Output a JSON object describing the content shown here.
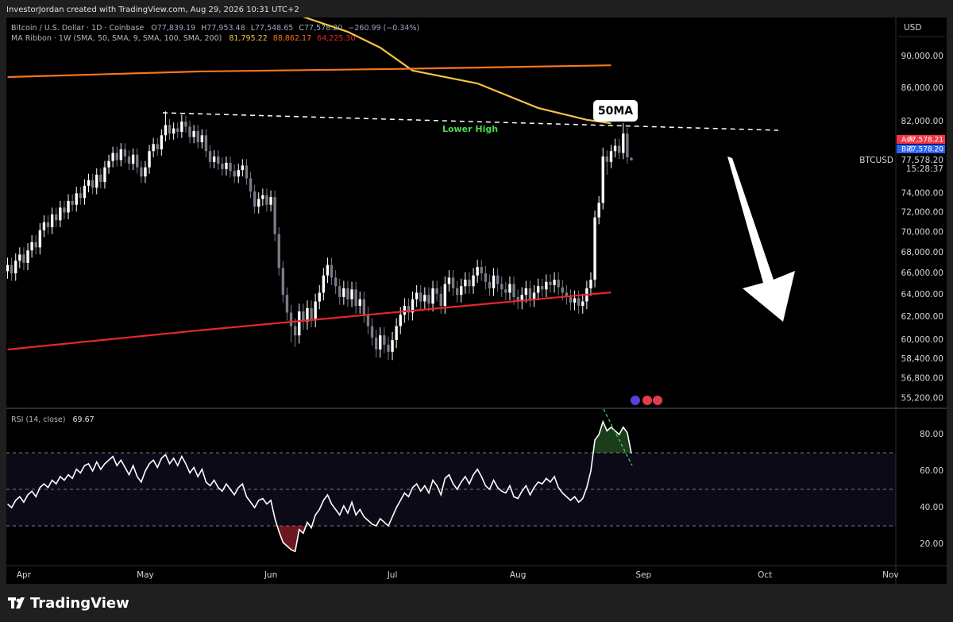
{
  "header": "InvestorJordan created with TradingView.com, Aug 29, 2026 10:31 UTC+2",
  "footer": {
    "brand": "TradingView"
  },
  "chart_data": [
    {
      "type": "candlestick",
      "title": "Bitcoin / U.S. Dollar · 1D · Coinbase",
      "ohlc_legend": [
        {
          "key": "O",
          "value": "77,839.19"
        },
        {
          "key": "H",
          "value": "77,953.48"
        },
        {
          "key": "L",
          "value": "77,548.65"
        },
        {
          "key": "C",
          "value": "77,578.20"
        }
      ],
      "change": "−260.99 (−0.34%)",
      "currency": "USD",
      "scale": "log",
      "up_color": "#ffffff",
      "down_color": "#787b86",
      "xlim": [
        -0.3,
        219.3
      ],
      "xticks": [
        {
          "value": 4,
          "label": "Apr"
        },
        {
          "value": 34,
          "label": "May"
        },
        {
          "value": 65,
          "label": "Jun"
        },
        {
          "value": 95,
          "label": "Jul"
        },
        {
          "value": 126,
          "label": "Aug"
        },
        {
          "value": 157,
          "label": "Sep"
        },
        {
          "value": 187,
          "label": "Oct"
        },
        {
          "value": 218,
          "label": "Nov"
        }
      ],
      "ylim": [
        54480,
        95150
      ],
      "yticks": [
        {
          "value": 55200,
          "label": "55,200.00"
        },
        {
          "value": 56800,
          "label": "56,800.00"
        },
        {
          "value": 58400,
          "label": "58,400.00"
        },
        {
          "value": 60000,
          "label": "60,000.00"
        },
        {
          "value": 62000,
          "label": "62,000.00"
        },
        {
          "value": 64000,
          "label": "64,000.00"
        },
        {
          "value": 66000,
          "label": "66,000.00"
        },
        {
          "value": 68000,
          "label": "68,000.00"
        },
        {
          "value": 70000,
          "label": "70,000.00"
        },
        {
          "value": 72000,
          "label": "72,000.00"
        },
        {
          "value": 74000,
          "label": "74,000.00"
        },
        {
          "value": 82000,
          "label": "82,000.00"
        },
        {
          "value": 86000,
          "label": "86,000.00"
        },
        {
          "value": 90000,
          "label": "90,000.00"
        }
      ],
      "open": [
        66200,
        66800,
        66000,
        67200,
        67800,
        67000,
        68200,
        69000,
        68500,
        70200,
        71000,
        70500,
        71800,
        71200,
        72500,
        72000,
        73200,
        72800,
        74000,
        73500,
        74800,
        75400,
        74600,
        76000,
        75200,
        76800,
        77500,
        78400,
        77600,
        78800,
        78000,
        77200,
        78200,
        76800,
        75800,
        76800,
        78600,
        79400,
        78800,
        80400,
        81600,
        80600,
        81200,
        80800,
        82000,
        81400,
        80200,
        80900,
        79600,
        80400,
        78600,
        77400,
        78000,
        77200,
        76600,
        77300,
        76400,
        75800,
        76500,
        77000,
        75600,
        74200,
        72600,
        73400,
        73800,
        72800,
        73600,
        69800,
        66500,
        64000,
        62400,
        61200,
        60400,
        62500,
        61600,
        62800,
        61800,
        63400,
        64200,
        65800,
        66800,
        65600,
        64800,
        63800,
        64600,
        63600,
        64500,
        63000,
        63600,
        62200,
        61200,
        60200,
        59200,
        60400,
        59600,
        59000,
        60000,
        61200,
        62200,
        63000,
        62400,
        63600,
        64200,
        63400,
        64000,
        63200,
        64600,
        64100,
        63000,
        65000,
        65600,
        64600,
        64000,
        64800,
        65400,
        64800,
        65800,
        66600,
        66000,
        65200,
        64600,
        65800,
        65000,
        64500,
        64200,
        65000,
        63800,
        63400,
        64000,
        64600,
        63600,
        64200,
        64800,
        64500,
        65200,
        64900,
        65400,
        64700,
        64200,
        63800,
        63300,
        63700,
        63000,
        63400,
        64600,
        65400,
        71500,
        73000,
        78000,
        77400,
        78600,
        79200,
        78400,
        80600,
        77839.19
      ],
      "high": [
        67500,
        67500,
        67900,
        68500,
        68500,
        68900,
        69700,
        69700,
        70900,
        71700,
        71700,
        72500,
        72500,
        73200,
        73200,
        73900,
        73900,
        74700,
        74700,
        75500,
        76100,
        76100,
        76700,
        76700,
        77500,
        78200,
        79100,
        79100,
        79500,
        79500,
        78700,
        78900,
        78900,
        77500,
        77500,
        79300,
        80100,
        80100,
        81100,
        83200,
        82300,
        81900,
        81900,
        82800,
        82700,
        82100,
        81600,
        81600,
        81100,
        81100,
        79300,
        78700,
        78700,
        77900,
        78000,
        78000,
        77100,
        77200,
        77700,
        77700,
        76300,
        74900,
        74100,
        74500,
        74500,
        74300,
        74300,
        70500,
        67200,
        64700,
        63100,
        61900,
        63200,
        63200,
        63500,
        63500,
        64100,
        64900,
        66500,
        67500,
        67500,
        66300,
        65500,
        65300,
        65300,
        65200,
        65200,
        64300,
        64300,
        62900,
        61900,
        60900,
        61100,
        61100,
        60300,
        60700,
        61900,
        62900,
        63700,
        63700,
        64300,
        64900,
        64900,
        64700,
        64700,
        65300,
        65300,
        64800,
        65700,
        66300,
        66300,
        65300,
        65500,
        66100,
        66100,
        66500,
        67300,
        67300,
        66700,
        65900,
        66500,
        66500,
        65700,
        65200,
        65700,
        65700,
        64500,
        64700,
        65300,
        65300,
        64900,
        65500,
        65500,
        65900,
        65900,
        66100,
        66100,
        65400,
        64900,
        64500,
        64400,
        64400,
        64100,
        65300,
        66100,
        72200,
        73700,
        79000,
        78700,
        79300,
        80000,
        80000,
        81800,
        81300,
        77953.48
      ],
      "low": [
        65500,
        65300,
        65300,
        66500,
        66300,
        66300,
        67500,
        67800,
        67800,
        69500,
        69800,
        69800,
        70500,
        70500,
        71300,
        71300,
        72100,
        72100,
        72800,
        72800,
        74100,
        73900,
        73900,
        74500,
        74500,
        76100,
        76800,
        76900,
        76900,
        77300,
        76500,
        76500,
        76100,
        75100,
        75100,
        76100,
        77900,
        78100,
        78100,
        79700,
        79900,
        79900,
        80100,
        80100,
        80700,
        79500,
        79500,
        78900,
        78900,
        77900,
        76700,
        76700,
        76500,
        75900,
        75900,
        75700,
        75100,
        75100,
        75800,
        74900,
        73500,
        71900,
        71900,
        72700,
        72100,
        72100,
        69100,
        65800,
        63300,
        61700,
        59800,
        59400,
        59700,
        60900,
        60900,
        61100,
        61100,
        62700,
        63500,
        65100,
        64900,
        64100,
        63100,
        63100,
        62900,
        62900,
        62300,
        62300,
        61500,
        60500,
        59500,
        58500,
        58500,
        58900,
        58300,
        58300,
        59300,
        60500,
        61500,
        61700,
        61700,
        62900,
        62700,
        62700,
        62500,
        62500,
        63400,
        62300,
        62300,
        64300,
        63900,
        63300,
        63300,
        64100,
        64100,
        64100,
        65100,
        65300,
        64500,
        63900,
        63900,
        64300,
        63800,
        63500,
        63500,
        63100,
        62700,
        62700,
        63300,
        62900,
        62900,
        63500,
        63800,
        63800,
        64200,
        64200,
        64000,
        63500,
        63100,
        62600,
        62600,
        62300,
        62300,
        62700,
        63900,
        64700,
        70800,
        72300,
        76000,
        76700,
        77900,
        77700,
        77700,
        77200,
        77548.65
      ],
      "close": [
        66800,
        66000,
        67200,
        67800,
        67000,
        68200,
        69000,
        68500,
        70200,
        71000,
        70500,
        71800,
        71200,
        72500,
        72000,
        73200,
        72800,
        74000,
        73500,
        74800,
        75400,
        74600,
        76000,
        75200,
        76800,
        77500,
        78400,
        77600,
        78800,
        78000,
        77200,
        78200,
        76800,
        75800,
        76800,
        78600,
        79400,
        78800,
        80400,
        81600,
        80600,
        81200,
        80800,
        82000,
        81400,
        80200,
        80900,
        79600,
        80400,
        78600,
        77400,
        78000,
        77200,
        76600,
        77300,
        76400,
        75800,
        76500,
        77000,
        75600,
        74200,
        72600,
        73400,
        73800,
        72800,
        73600,
        69800,
        66500,
        64000,
        62400,
        61200,
        60400,
        62500,
        61600,
        62800,
        61800,
        63400,
        64200,
        65800,
        66800,
        65600,
        64800,
        63800,
        64600,
        63600,
        64500,
        63000,
        63600,
        62200,
        61200,
        60200,
        59200,
        60400,
        59600,
        59000,
        60000,
        61200,
        62200,
        63000,
        62400,
        63600,
        64200,
        63400,
        64000,
        63200,
        64600,
        64100,
        63000,
        65000,
        65600,
        64600,
        64000,
        64800,
        65400,
        64800,
        65800,
        66600,
        66000,
        65200,
        64600,
        65800,
        65000,
        64500,
        64200,
        65000,
        63800,
        63400,
        64000,
        64600,
        63600,
        64200,
        64800,
        64500,
        65200,
        64900,
        65400,
        64700,
        64200,
        63800,
        63300,
        63700,
        63000,
        63400,
        64600,
        65400,
        71500,
        73000,
        78000,
        77400,
        78600,
        79200,
        78400,
        80600,
        77900,
        77578.2
      ],
      "overlays": {
        "title": "MA Ribbon · 1W (SMA, 50, SMA, 9, SMA, 100, SMA, 200)",
        "series": [
          {
            "color": "#f5c342",
            "x": [
              70,
              84,
              92,
              100,
              116,
              131,
              143,
              149
            ],
            "values": [
              95800,
              93220,
              91130,
              88200,
              86590,
              83600,
              82200,
              81795.22
            ],
            "value_label": "81,795.22"
          },
          {
            "color": "#f7761d",
            "x": [
              0,
              47,
              96,
              149
            ],
            "values": [
              87380,
              88080,
              88400,
              88862.17
            ],
            "value_label": "88,862.17"
          },
          {
            "color": "#e8262c",
            "x": [
              0,
              47,
              96,
              149
            ],
            "values": [
              59190,
              60820,
              62440,
              64225.3
            ],
            "value_label": "64,225.30"
          }
        ]
      },
      "annotations": [
        "50MA",
        "Lower High"
      ],
      "price_tags": {
        "ask_label": "Ask",
        "ask": "77,578.21",
        "bid_label": "Bid",
        "bid": "77,578.20",
        "last": "77,578.20",
        "symbol": "BTCUSD",
        "countdown": "15:28:37"
      }
    },
    {
      "type": "line",
      "title": "RSI (14, close)",
      "color": "#ffffff",
      "ylim": [
        8.3,
        93.9
      ],
      "yticks": [
        {
          "value": 20,
          "label": "20.00"
        },
        {
          "value": 40,
          "label": "40.00"
        },
        {
          "value": 60,
          "label": "60.00"
        },
        {
          "value": 80,
          "label": "80.00"
        }
      ],
      "bands": [
        30,
        70
      ],
      "midline": 50,
      "values": [
        42,
        40,
        44,
        46,
        43,
        47,
        49,
        46,
        51,
        53,
        51,
        55,
        53,
        57,
        55,
        58,
        56,
        61,
        59,
        63,
        64,
        60,
        65,
        61,
        64,
        66,
        68,
        63,
        66,
        62,
        58,
        63,
        57,
        54,
        60,
        64,
        66,
        62,
        67,
        69,
        64,
        67,
        63,
        68,
        64,
        59,
        62,
        57,
        61,
        54,
        52,
        55,
        51,
        49,
        53,
        50,
        47,
        51,
        53,
        46,
        43,
        40,
        44,
        45,
        42,
        44,
        34,
        27,
        21,
        19,
        17,
        16,
        28,
        26,
        32,
        29,
        36,
        39,
        44,
        47,
        42,
        39,
        36,
        41,
        37,
        43,
        36,
        39,
        35,
        33,
        31,
        30,
        34,
        32,
        30,
        35,
        40,
        44,
        48,
        46,
        51,
        53,
        49,
        52,
        48,
        55,
        52,
        47,
        56,
        58,
        53,
        50,
        54,
        57,
        53,
        58,
        61,
        57,
        52,
        50,
        55,
        51,
        49,
        48,
        52,
        46,
        45,
        49,
        52,
        47,
        51,
        54,
        53,
        56,
        54,
        57,
        51,
        48,
        46,
        44,
        46,
        43,
        45,
        51,
        60,
        77,
        80,
        87,
        82,
        84,
        82,
        80,
        84,
        81,
        69.67
      ]
    }
  ]
}
